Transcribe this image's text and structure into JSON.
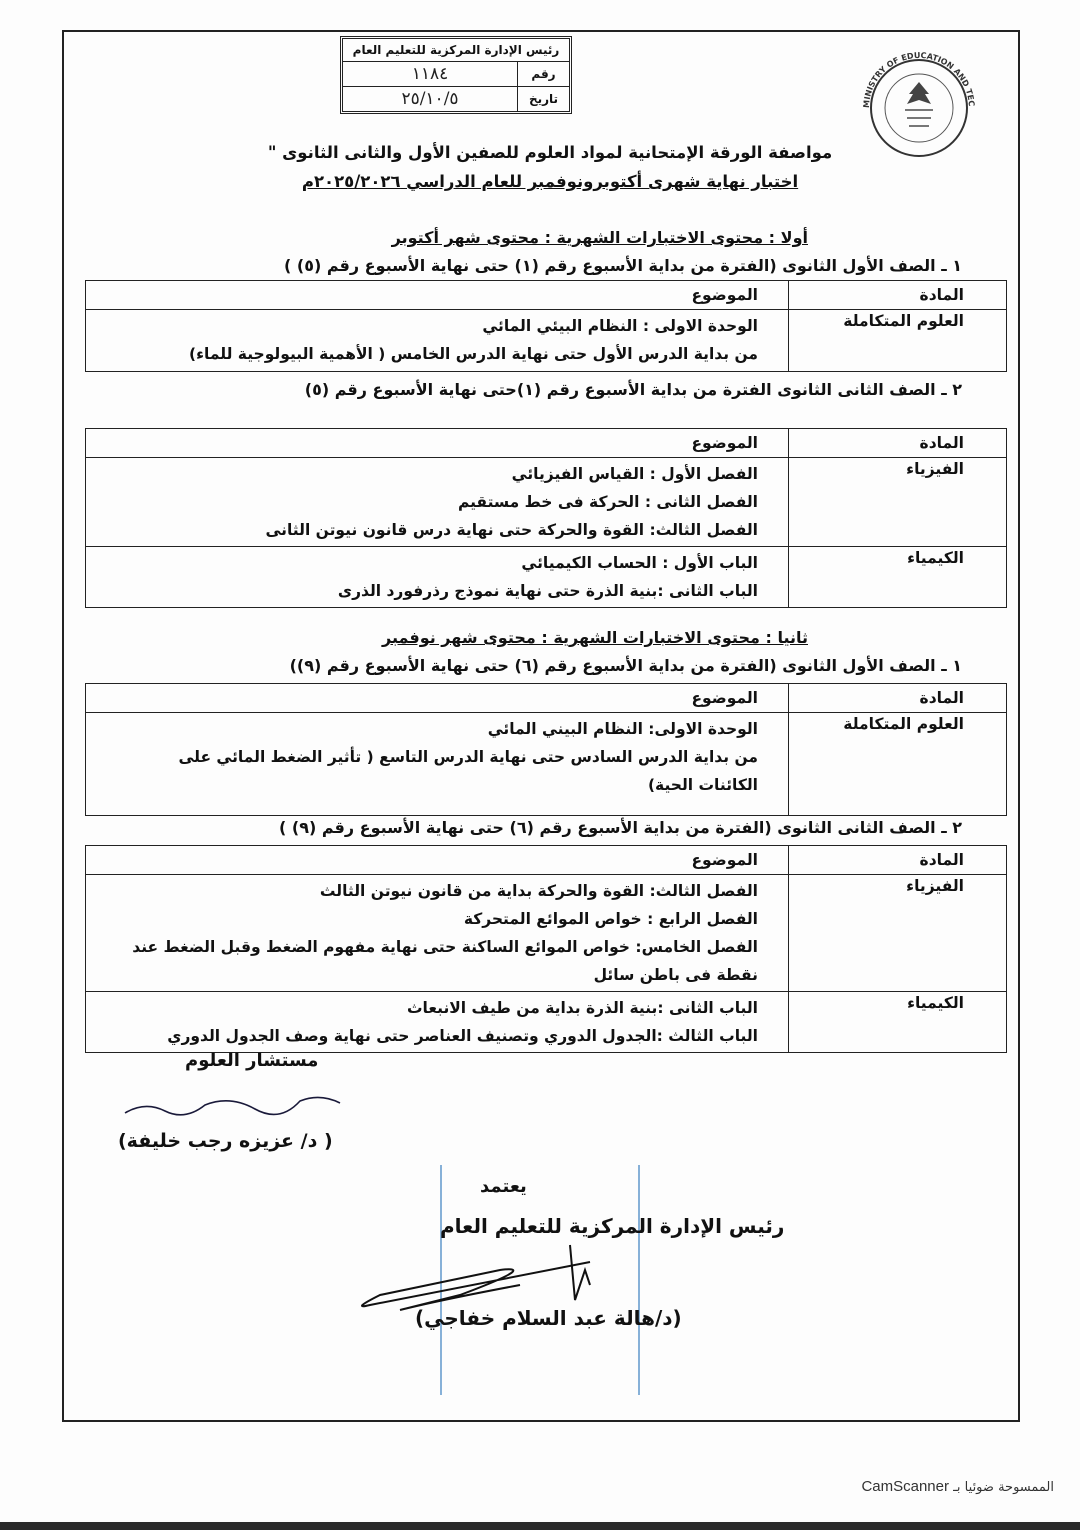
{
  "stamp": {
    "header": "رئيس الإدارة المركزية للتعليم العام",
    "number_label": "رقم",
    "number": "١١٨٤",
    "date_label": "تاريخ",
    "date": "٢٥/١٠/٥"
  },
  "logo": {
    "text": "MINISTRY OF EDUCATION AND TECHNICAL EDUCATION"
  },
  "title": {
    "line1": "مواصفة الورقة الإمتحانية لمواد العلوم  للصفين الأول والثانى الثانوى \"",
    "line2": "اختبار نهاية شهرى  أكتوبرونوفمبر  للعام الدراسي ٢٠٢٥/٢٠٢٦م"
  },
  "col_subject": "المادة",
  "col_topic": "الموضوع",
  "october": {
    "heading": "أولا : محتوى الاختبارات الشهرية : محتوى شهر أكتوبر",
    "grade1": {
      "line": "١ ـ الصف الأول الثانوى (الفترة من بداية الأسبوع رقم (١) حتى نهاية الأسبوع رقم (٥) )",
      "rows": [
        {
          "subject": "العلوم المتكاملة",
          "topics": [
            "الوحدة الاولى : النظام البيئي المائي",
            "من بداية الدرس الأول حتى نهاية الدرس الخامس ( الأهمية البيولوجية للماء)"
          ]
        }
      ]
    },
    "grade2": {
      "line": "٢ ـ الصف الثانى الثانوى الفترة من بداية الأسبوع رقم (١)حتى نهاية الأسبوع رقم (٥)",
      "rows": [
        {
          "subject": "الفيزياء",
          "topics": [
            "الفصل الأول : القياس الفيزيائي",
            "الفصل الثانى : الحركة فى خط مستقيم",
            "الفصل الثالث: القوة والحركة حتى نهاية درس قانون نيوتن الثانى"
          ]
        },
        {
          "subject": "الكيمياء",
          "topics": [
            "الباب الأول : الحساب الكيميائي",
            "الباب الثانى :بنية الذرة حتى نهاية نموذج رذرفورد الذرى"
          ]
        }
      ]
    }
  },
  "november": {
    "heading": "ثانيا : محتوى الاختبارات الشهرية : محتوى شهر نوفمبر",
    "grade1": {
      "line": "١ ـ الصف الأول الثانوى (الفترة من بداية الأسبوع رقم (٦) حتى نهاية الأسبوع رقم (٩))",
      "rows": [
        {
          "subject": "العلوم المتكاملة",
          "topics": [
            "الوحدة الاولى: النظام البيني المائي",
            "من بداية الدرس السادس  حتى نهاية الدرس التاسع ( تأثير الضغط المائي على الكائنات الحية)"
          ]
        }
      ]
    },
    "grade2": {
      "line": "٢ ـ الصف الثانى الثانوى (الفترة من بداية الأسبوع رقم (٦) حتى نهاية الأسبوع رقم (٩) )",
      "rows": [
        {
          "subject": "الفيزياء",
          "topics": [
            "الفصل الثالث: القوة والحركة بداية من قانون نيوتن الثالث",
            "الفصل الرابع : خواص الموائع المتحركة",
            "الفصل الخامس: خواص الموائع الساكنة حتى نهاية مفهوم الضغط وقبل الضغط عند نقطة فى باطن سائل"
          ]
        },
        {
          "subject": "الكيمياء",
          "topics": [
            "الباب الثانى :بنية الذرة بداية من طيف الانبعاث",
            "الباب الثالث :الجدول الدوري وتصنيف العناصر حتى نهاية وصف الجدول الدوري"
          ]
        }
      ]
    }
  },
  "advisor": {
    "title": "مستشار العلوم",
    "signature": "د/ عزيزه رجب خليفة",
    "name": "( د/ عزيزه رجب خليفة)"
  },
  "approval": {
    "label": "يعتمد",
    "title": "رئيس الإدارة المركزية للتعليم العام",
    "name": "(د/هالة عبد السلام خفاجي)"
  },
  "footer": {
    "prefix": "الممسوحة ضوئيا بـ",
    "app": "CamScanner"
  }
}
